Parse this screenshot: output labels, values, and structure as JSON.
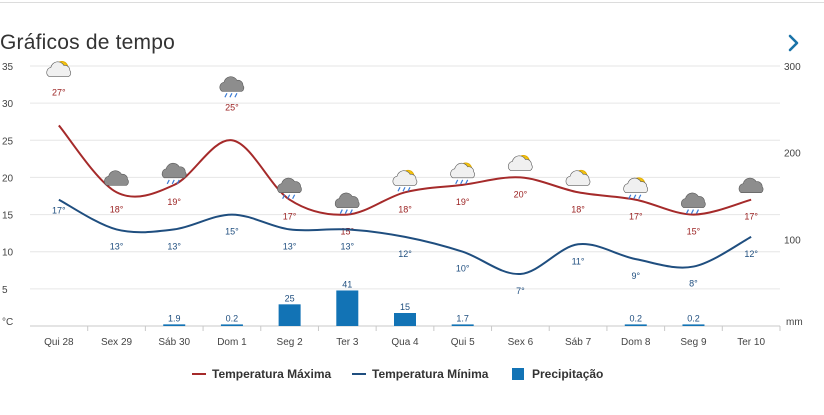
{
  "header": {
    "title": "Gráficos de tempo",
    "next_icon": "chevron-right-icon"
  },
  "chart_data": {
    "type": "line",
    "categories": [
      "Qui 28",
      "Sex 29",
      "Sáb 30",
      "Dom 1",
      "Seg 2",
      "Ter 3",
      "Qua 4",
      "Qui 5",
      "Sex 6",
      "Sáb 7",
      "Dom 8",
      "Seg 9",
      "Ter 10"
    ],
    "icons": [
      "partly-sunny-icon",
      "cloudy-icon",
      "cloud-rain-icon",
      "cloud-rain-icon",
      "cloud-rain-icon",
      "cloud-rain-icon",
      "partly-sunny-rain-icon",
      "partly-sunny-rain-icon",
      "partly-sunny-icon",
      "partly-sunny-icon",
      "partly-sunny-rain-icon",
      "cloud-rain-icon",
      "cloudy-icon"
    ],
    "series": [
      {
        "name": "Temperatura Máxima",
        "color": "#a52a2a",
        "axis": "left",
        "values": [
          27,
          18,
          19,
          25,
          17,
          15,
          18,
          19,
          20,
          18,
          17,
          15,
          17
        ],
        "labels": [
          "27°",
          "18°",
          "19°",
          "25°",
          "17°",
          "15°",
          "18°",
          "19°",
          "20°",
          "18°",
          "17°",
          "15°",
          "17°"
        ]
      },
      {
        "name": "Temperatura Mínima",
        "color": "#1f4e7f",
        "axis": "left",
        "values": [
          17,
          13,
          13,
          15,
          13,
          13,
          12,
          10,
          7,
          11,
          9,
          8,
          12
        ],
        "labels": [
          "17°",
          "13°",
          "13°",
          "15°",
          "13°",
          "13°",
          "12°",
          "10°",
          "7°",
          "11°",
          "9°",
          "8°",
          "12°"
        ]
      },
      {
        "name": "Precipitação",
        "color": "#1273b5",
        "type": "bar",
        "axis": "right",
        "values": [
          0,
          0,
          1.9,
          0.2,
          25,
          41,
          15,
          1.7,
          0,
          0,
          0.2,
          0.2,
          0
        ],
        "labels": [
          "",
          "",
          "1.9",
          "0.2",
          "25",
          "41",
          "15",
          "1.7",
          "",
          "",
          "0.2",
          "0.2",
          ""
        ]
      }
    ],
    "y_left": {
      "unit": "°C",
      "min": 0,
      "max": 35,
      "ticks": [
        "5",
        "10",
        "15",
        "20",
        "25",
        "30",
        "35"
      ]
    },
    "y_right": {
      "unit": "mm",
      "min": 0,
      "max": 300,
      "ticks": [
        "100",
        "200",
        "300"
      ]
    },
    "grid": true,
    "legend_position": "bottom"
  }
}
